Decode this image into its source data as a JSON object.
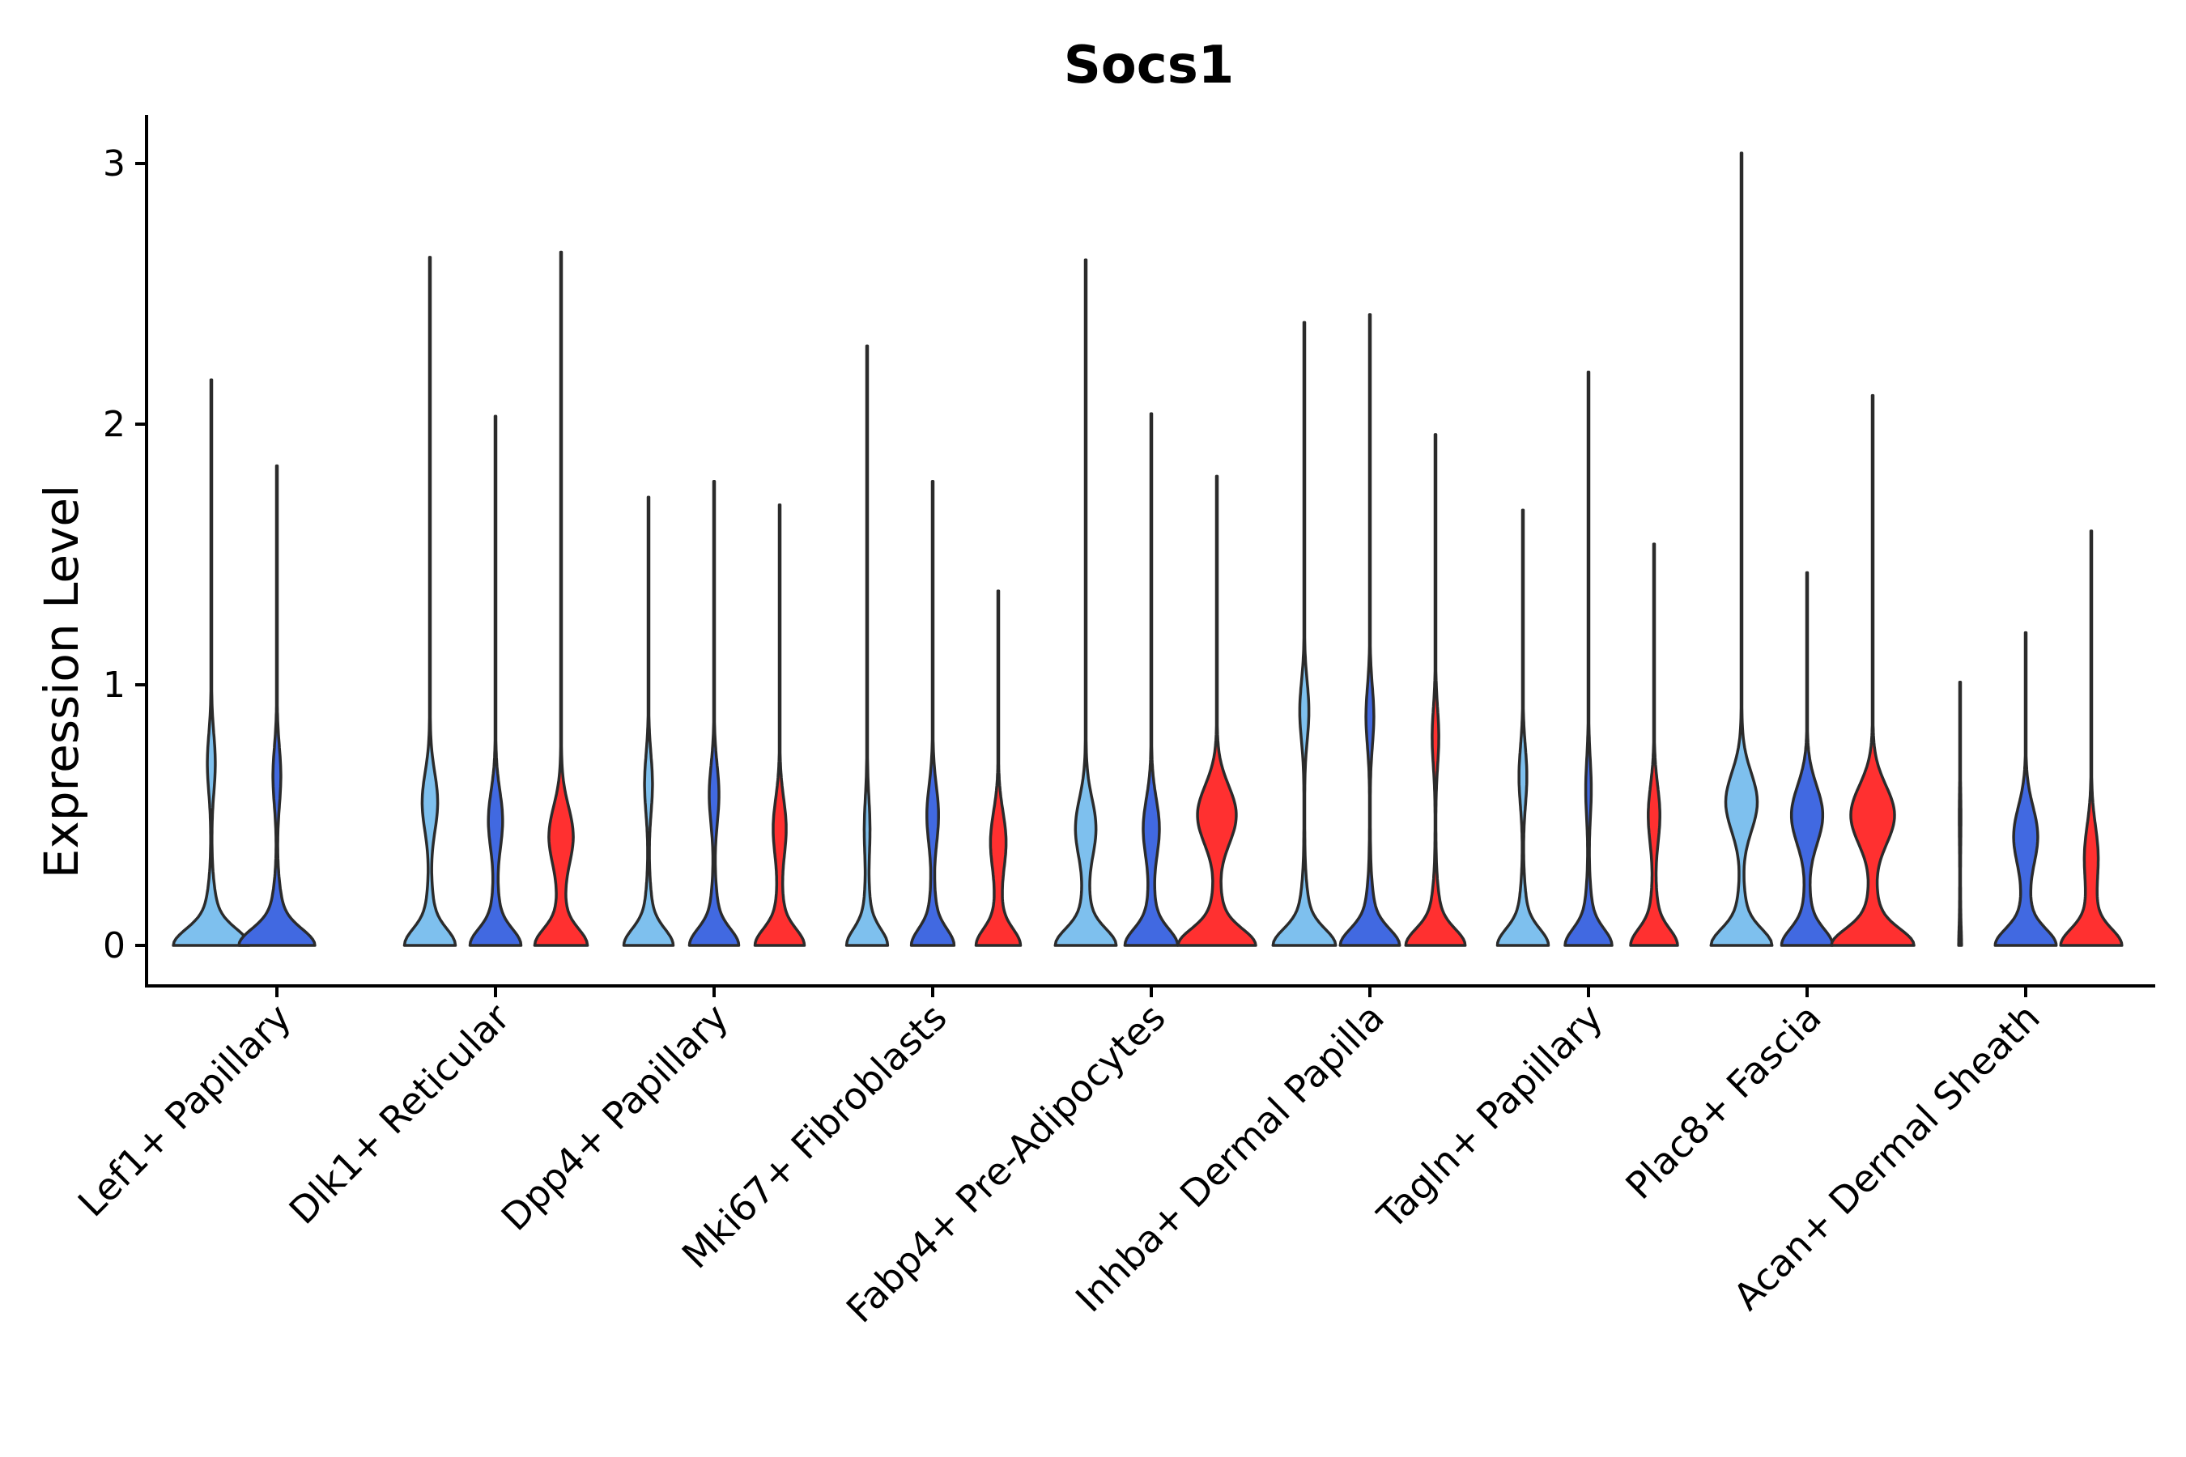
{
  "chart_data": {
    "type": "violin",
    "title": "Socs1",
    "xlabel": "",
    "ylabel": "Expression Level",
    "ylim": [
      -0.15,
      3.2
    ],
    "yticks": [
      0,
      1,
      2,
      3
    ],
    "legend": "none",
    "colors": {
      "group_a": "#7ec0ee",
      "group_b": "#4169e1",
      "group_c": "#ff3030",
      "outline": "#2b2b2b"
    },
    "categories": [
      "Lef1+ Papillary",
      "Dlk1+ Reticular",
      "Dpp4+ Papillary",
      "Mki67+ Fibroblasts",
      "Fabp4+ Pre-Adipocytes",
      "Inhba+ Dermal Papilla",
      "Tagln+ Papillary",
      "Plac8+ Fascia",
      "Acan+ Dermal Sheath"
    ],
    "violins": [
      {
        "category": "Lef1+ Papillary",
        "group": "group_a",
        "max": 2.17,
        "mode": 0.7,
        "mode_width": 0.12,
        "base_width": 0.9
      },
      {
        "category": "Lef1+ Papillary",
        "group": "group_b",
        "max": 1.84,
        "mode": 0.65,
        "mode_width": 0.12,
        "base_width": 0.9
      },
      {
        "category": "Dlk1+ Reticular",
        "group": "group_a",
        "max": 2.64,
        "mode": 0.55,
        "mode_width": 0.24,
        "base_width": 0.6
      },
      {
        "category": "Dlk1+ Reticular",
        "group": "group_b",
        "max": 2.03,
        "mode": 0.48,
        "mode_width": 0.22,
        "base_width": 0.6
      },
      {
        "category": "Dlk1+ Reticular",
        "group": "group_c",
        "max": 2.66,
        "mode": 0.42,
        "mode_width": 0.38,
        "base_width": 0.62
      },
      {
        "category": "Dpp4+ Papillary",
        "group": "group_a",
        "max": 1.72,
        "mode": 0.62,
        "mode_width": 0.12,
        "base_width": 0.58
      },
      {
        "category": "Dpp4+ Papillary",
        "group": "group_b",
        "max": 1.78,
        "mode": 0.58,
        "mode_width": 0.15,
        "base_width": 0.58
      },
      {
        "category": "Dpp4+ Papillary",
        "group": "group_c",
        "max": 1.69,
        "mode": 0.45,
        "mode_width": 0.2,
        "base_width": 0.58
      },
      {
        "category": "Mki67+ Fibroblasts",
        "group": "group_a",
        "max": 2.3,
        "mode": 0.45,
        "mode_width": 0.08,
        "base_width": 0.48
      },
      {
        "category": "Mki67+ Fibroblasts",
        "group": "group_b",
        "max": 1.78,
        "mode": 0.5,
        "mode_width": 0.18,
        "base_width": 0.5
      },
      {
        "category": "Mki67+ Fibroblasts",
        "group": "group_c",
        "max": 1.36,
        "mode": 0.4,
        "mode_width": 0.24,
        "base_width": 0.52
      },
      {
        "category": "Fabp4+ Pre-Adipocytes",
        "group": "group_a",
        "max": 2.63,
        "mode": 0.45,
        "mode_width": 0.32,
        "base_width": 0.72
      },
      {
        "category": "Fabp4+ Pre-Adipocytes",
        "group": "group_b",
        "max": 2.04,
        "mode": 0.45,
        "mode_width": 0.25,
        "base_width": 0.62
      },
      {
        "category": "Fabp4+ Pre-Adipocytes",
        "group": "group_c",
        "max": 1.8,
        "mode": 0.5,
        "mode_width": 0.62,
        "base_width": 0.92
      },
      {
        "category": "Inhba+ Dermal Papilla",
        "group": "group_a",
        "max": 2.39,
        "mode": 0.9,
        "mode_width": 0.14,
        "base_width": 0.74
      },
      {
        "category": "Inhba+ Dermal Papilla",
        "group": "group_b",
        "max": 2.42,
        "mode": 0.88,
        "mode_width": 0.12,
        "base_width": 0.7
      },
      {
        "category": "Inhba+ Dermal Papilla",
        "group": "group_c",
        "max": 1.96,
        "mode": 0.8,
        "mode_width": 0.1,
        "base_width": 0.7
      },
      {
        "category": "Tagln+ Papillary",
        "group": "group_a",
        "max": 1.67,
        "mode": 0.65,
        "mode_width": 0.12,
        "base_width": 0.6
      },
      {
        "category": "Tagln+ Papillary",
        "group": "group_b",
        "max": 2.2,
        "mode": 0.6,
        "mode_width": 0.08,
        "base_width": 0.55
      },
      {
        "category": "Tagln+ Papillary",
        "group": "group_c",
        "max": 1.54,
        "mode": 0.5,
        "mode_width": 0.18,
        "base_width": 0.55
      },
      {
        "category": "Plac8+ Fascia",
        "group": "group_a",
        "max": 3.04,
        "mode": 0.55,
        "mode_width": 0.5,
        "base_width": 0.72
      },
      {
        "category": "Plac8+ Fascia",
        "group": "group_b",
        "max": 1.43,
        "mode": 0.5,
        "mode_width": 0.5,
        "base_width": 0.6
      },
      {
        "category": "Plac8+ Fascia",
        "group": "group_c",
        "max": 2.11,
        "mode": 0.5,
        "mode_width": 0.7,
        "base_width": 0.98
      },
      {
        "category": "Acan+ Dermal Sheath",
        "group": "group_a",
        "max": 1.01,
        "mode": 0.5,
        "mode_width": 0.02,
        "base_width": 0.02
      },
      {
        "category": "Acan+ Dermal Sheath",
        "group": "group_b",
        "max": 1.2,
        "mode": 0.42,
        "mode_width": 0.38,
        "base_width": 0.72
      },
      {
        "category": "Acan+ Dermal Sheath",
        "group": "group_c",
        "max": 1.59,
        "mode": 0.35,
        "mode_width": 0.2,
        "base_width": 0.72
      }
    ]
  }
}
